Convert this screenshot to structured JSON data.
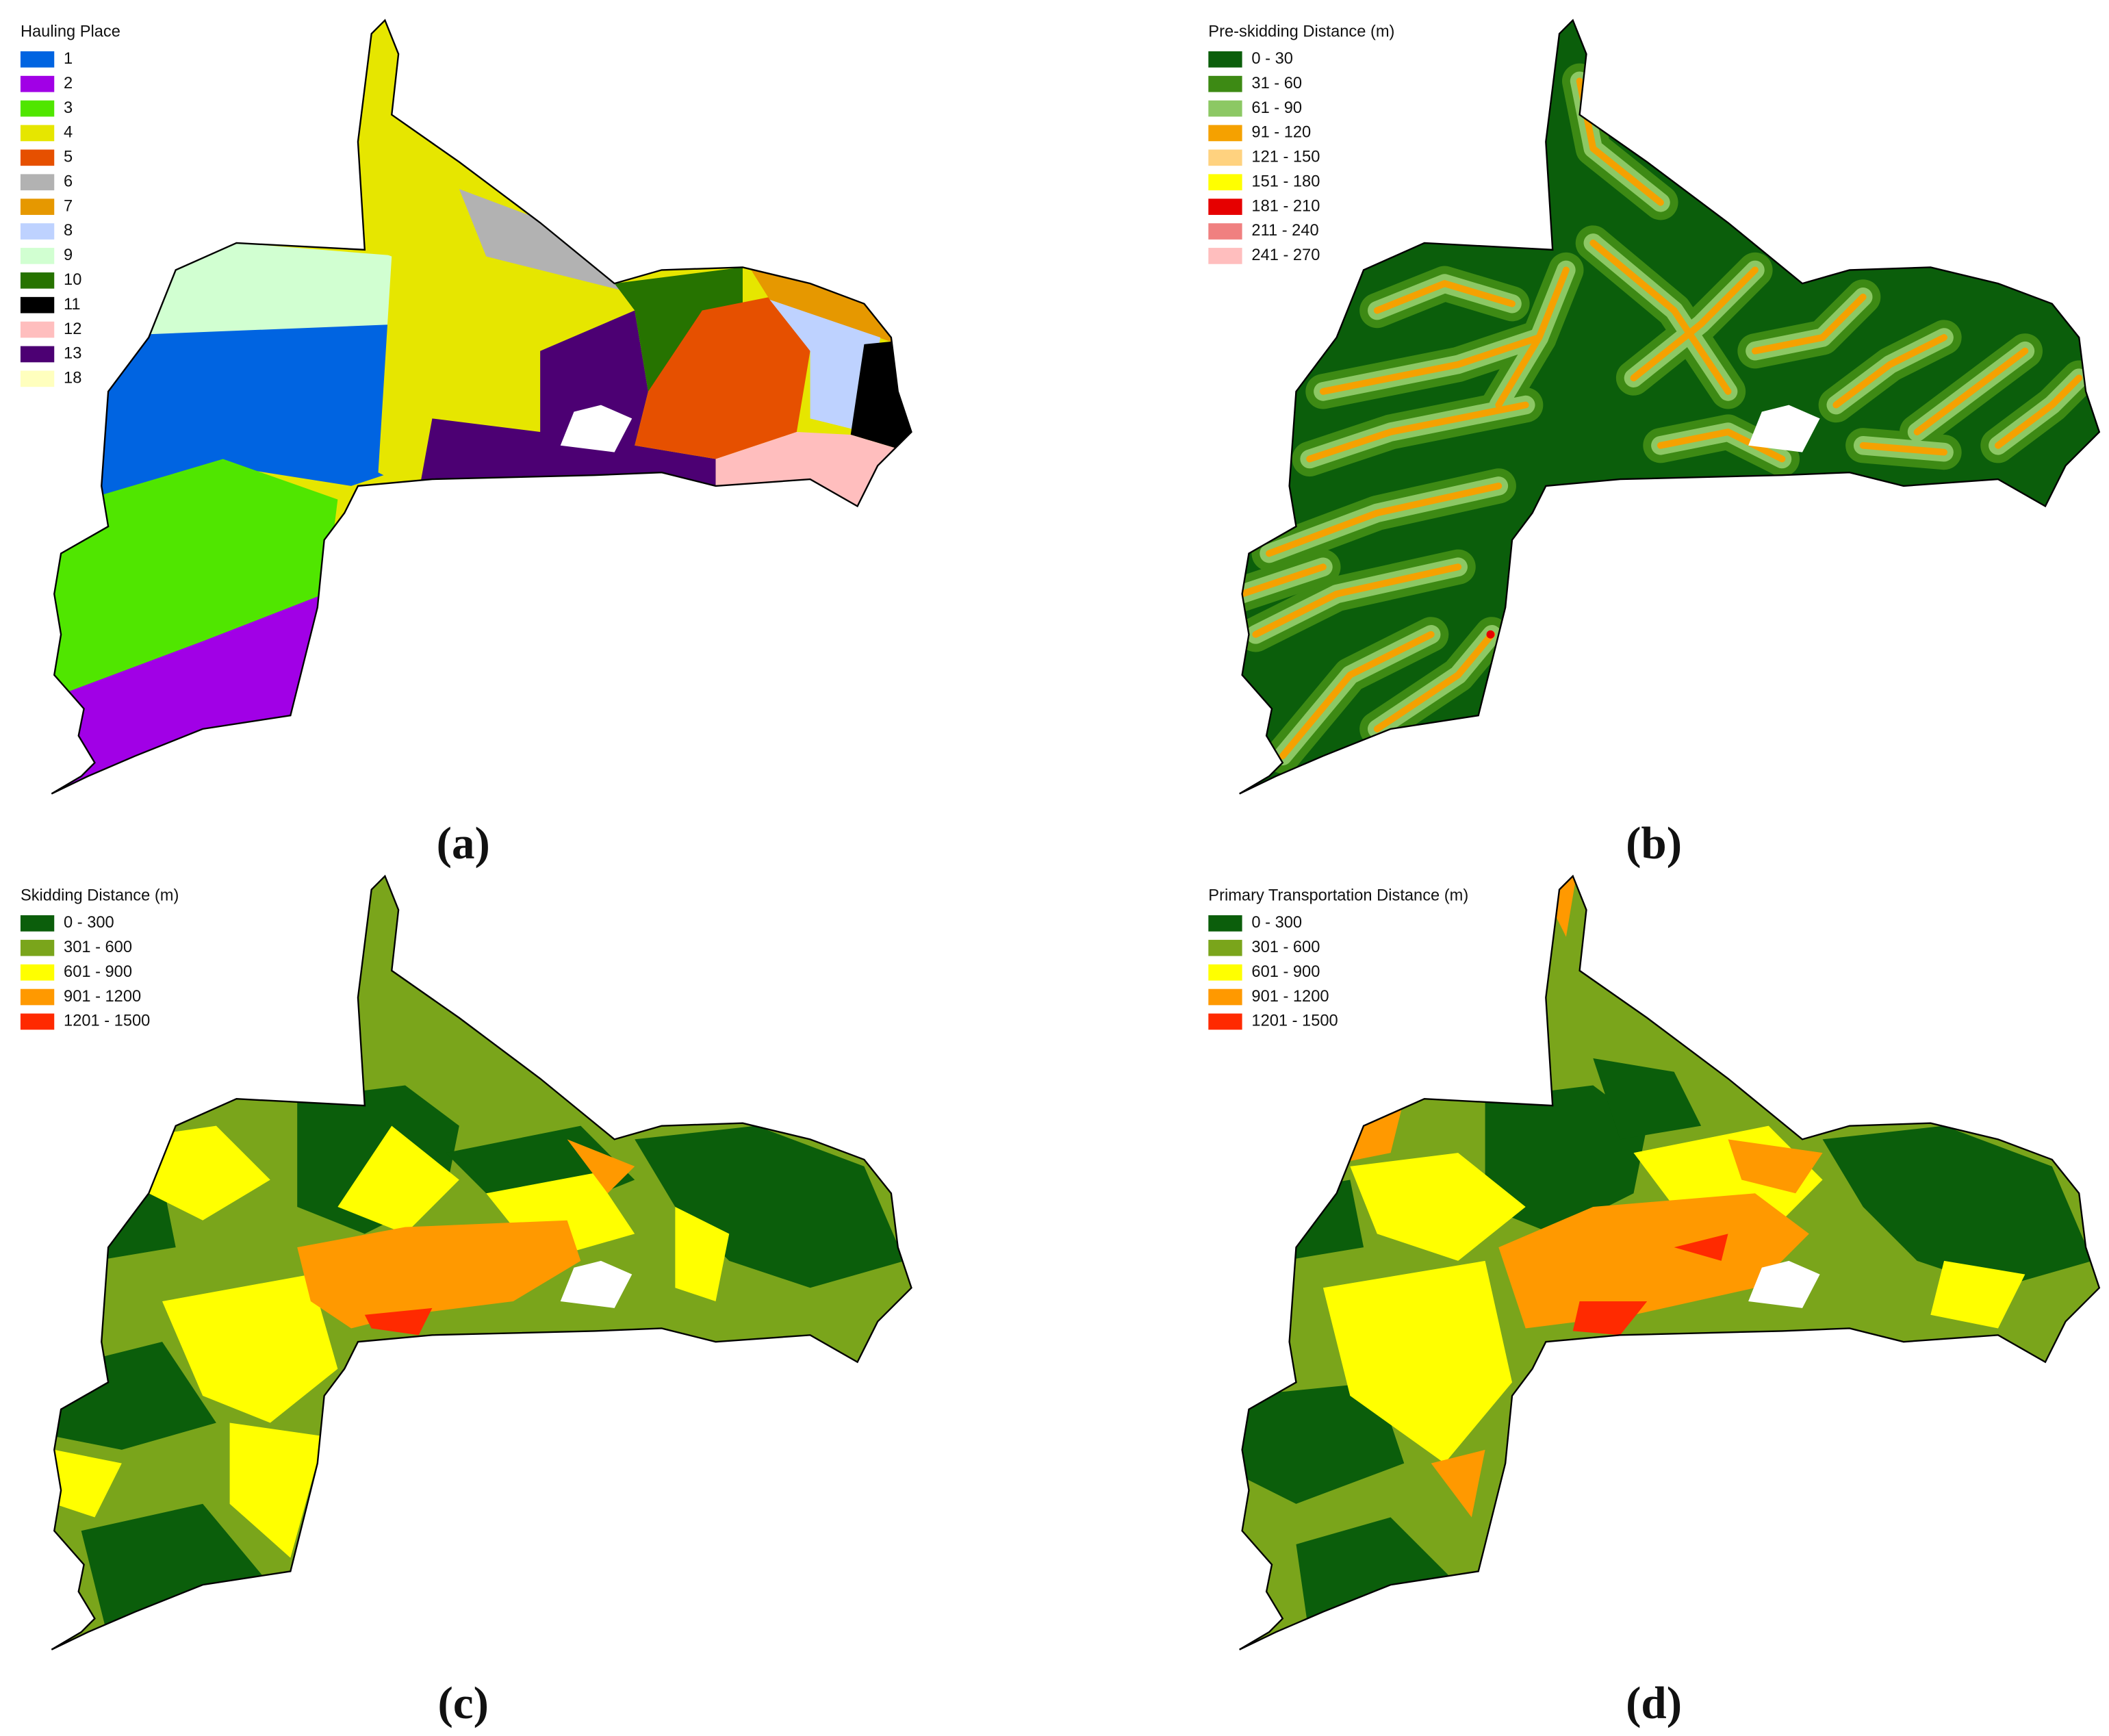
{
  "panels": [
    {
      "caption": "(a)",
      "legend": {
        "title": "Hauling Place",
        "items": [
          {
            "label": "1",
            "color": "#0064e1"
          },
          {
            "label": "2",
            "color": "#a100e6"
          },
          {
            "label": "3",
            "color": "#50e600"
          },
          {
            "label": "4",
            "color": "#e6e600"
          },
          {
            "label": "5",
            "color": "#e65000"
          },
          {
            "label": "6",
            "color": "#b2b2b2"
          },
          {
            "label": "7",
            "color": "#e69800"
          },
          {
            "label": "8",
            "color": "#bed2ff"
          },
          {
            "label": "9",
            "color": "#d1ffd1"
          },
          {
            "label": "10",
            "color": "#267300"
          },
          {
            "label": "11",
            "color": "#000000"
          },
          {
            "label": "12",
            "color": "#ffbebe"
          },
          {
            "label": "13",
            "color": "#4c0073"
          },
          {
            "label": "18",
            "color": "#ffffbe"
          }
        ]
      }
    },
    {
      "caption": "(b)",
      "legend": {
        "title": "Pre-skidding Distance (m)",
        "items": [
          {
            "label": "0 - 30",
            "color": "#0b5e0b"
          },
          {
            "label": "31 - 60",
            "color": "#3d8a14"
          },
          {
            "label": "61 - 90",
            "color": "#8cc864"
          },
          {
            "label": "91 - 120",
            "color": "#f5a100"
          },
          {
            "label": "121 - 150",
            "color": "#ffd27f"
          },
          {
            "label": "151 - 180",
            "color": "#ffff00"
          },
          {
            "label": "181 - 210",
            "color": "#e60000"
          },
          {
            "label": "211 - 240",
            "color": "#f08080"
          },
          {
            "label": "241 - 270",
            "color": "#ffbebe"
          }
        ]
      }
    },
    {
      "caption": "(c)",
      "legend": {
        "title": "Skidding Distance (m)",
        "items": [
          {
            "label": "0 - 300",
            "color": "#0b5e0b"
          },
          {
            "label": "301 - 600",
            "color": "#7aa51b"
          },
          {
            "label": "601 - 900",
            "color": "#ffff00"
          },
          {
            "label": "901 - 1200",
            "color": "#ff9900"
          },
          {
            "label": "1201 - 1500",
            "color": "#ff2a00"
          }
        ]
      }
    },
    {
      "caption": "(d)",
      "legend": {
        "title": "Primary Transportation Distance (m)",
        "items": [
          {
            "label": "0 - 300",
            "color": "#0b5e0b"
          },
          {
            "label": "301 - 600",
            "color": "#7aa51b"
          },
          {
            "label": "601 - 900",
            "color": "#ffff00"
          },
          {
            "label": "901 - 1200",
            "color": "#ff9900"
          },
          {
            "label": "1201 - 1500",
            "color": "#ff2a00"
          }
        ]
      }
    }
  ]
}
